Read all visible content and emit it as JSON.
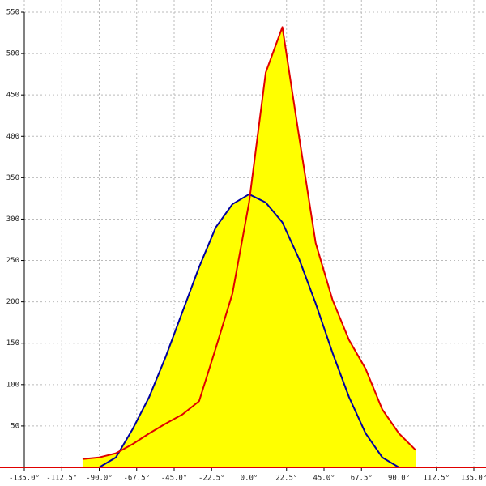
{
  "chart_data": {
    "type": "area",
    "x": [
      -100,
      -90,
      -80,
      -70,
      -60,
      -50,
      -40,
      -30,
      -20,
      -10,
      0,
      10,
      20,
      30,
      40,
      50,
      60,
      70,
      80,
      90,
      100
    ],
    "series": [
      {
        "color": "#0000a0",
        "fill": "#ffff00",
        "values": [
          0,
          0,
          12,
          46,
          85,
          134,
          188,
          242,
          290,
          318,
          330,
          320,
          296,
          252,
          198,
          139,
          85,
          41,
          12,
          0,
          0
        ]
      },
      {
        "color": "#e00000",
        "fill": "#ffff00",
        "values": [
          10,
          12,
          17,
          28,
          41,
          53,
          64,
          80,
          144,
          210,
          320,
          477,
          532,
          400,
          271,
          203,
          154,
          119,
          70,
          41,
          21
        ]
      }
    ],
    "xlim": [
      -135,
      135
    ],
    "ylim": [
      0,
      550
    ],
    "xticks": [
      {
        "value": -135,
        "label": "-135.0°"
      },
      {
        "value": -112.5,
        "label": "-112.5°"
      },
      {
        "value": -90,
        "label": "-90.0°"
      },
      {
        "value": -67.5,
        "label": "-67.5°"
      },
      {
        "value": -45,
        "label": "-45.0°"
      },
      {
        "value": -22.5,
        "label": "-22.5°"
      },
      {
        "value": 0,
        "label": "0.0°"
      },
      {
        "value": 22.5,
        "label": "22.5°"
      },
      {
        "value": 45,
        "label": "45.0°"
      },
      {
        "value": 67.5,
        "label": "67.5°"
      },
      {
        "value": 90,
        "label": "90.0°"
      },
      {
        "value": 112.5,
        "label": "112.5°"
      },
      {
        "value": 135,
        "label": "135.0°"
      }
    ],
    "yticks": [
      50,
      100,
      150,
      200,
      250,
      300,
      350,
      400,
      450,
      500,
      550
    ],
    "grid": true
  }
}
